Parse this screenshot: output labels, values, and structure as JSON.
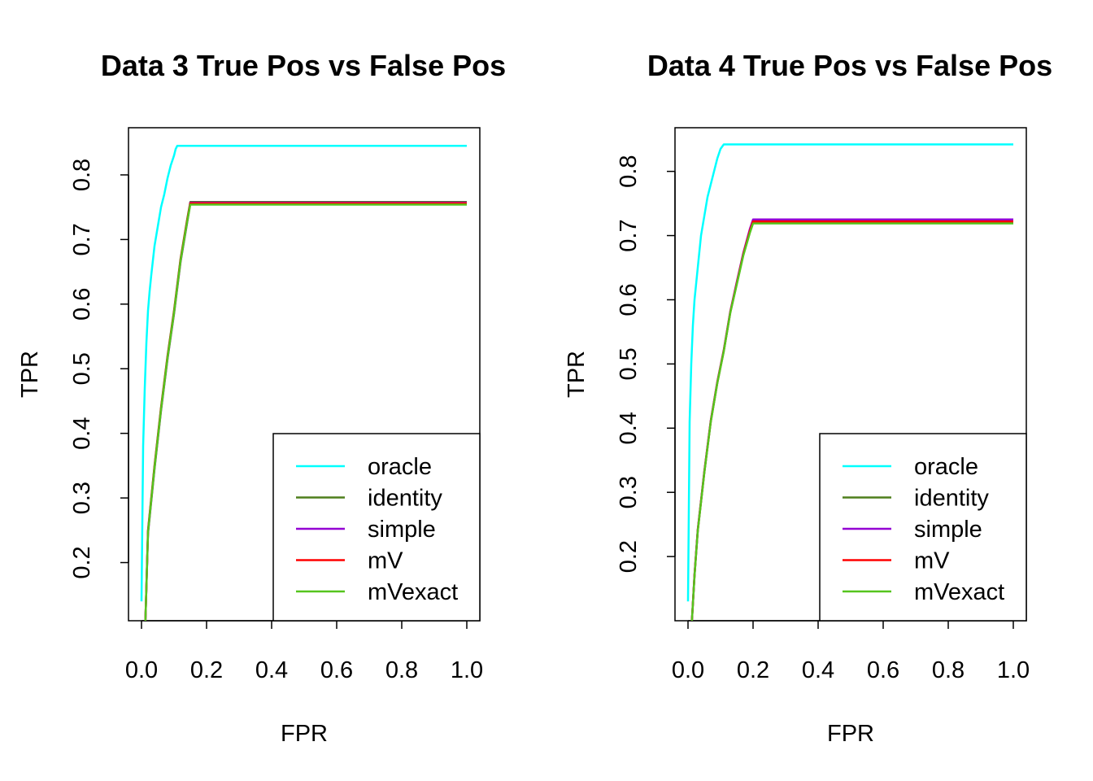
{
  "chart_data": [
    {
      "type": "line",
      "title": "Data 3 True Pos vs False Pos",
      "xlabel": "FPR",
      "ylabel": "TPR",
      "xlim": [
        -0.04,
        1.04
      ],
      "ylim": [
        0.11,
        0.873
      ],
      "xticks": [
        "0.0",
        "0.2",
        "0.4",
        "0.6",
        "0.8",
        "1.0"
      ],
      "yticks": [
        "0.2",
        "0.3",
        "0.4",
        "0.5",
        "0.6",
        "0.7",
        "0.8"
      ],
      "legend_position": "bottom-right",
      "series": [
        {
          "name": "oracle",
          "color": "#00ffff",
          "x": [
            0.0,
            0.005,
            0.01,
            0.015,
            0.02,
            0.025,
            0.03,
            0.04,
            0.05,
            0.06,
            0.07,
            0.08,
            0.09,
            0.1,
            0.105,
            0.11,
            0.2,
            0.4,
            0.6,
            0.8,
            1.0
          ],
          "y": [
            0.14,
            0.38,
            0.47,
            0.54,
            0.59,
            0.62,
            0.645,
            0.69,
            0.72,
            0.75,
            0.77,
            0.795,
            0.815,
            0.83,
            0.84,
            0.845,
            0.845,
            0.845,
            0.845,
            0.845,
            0.845
          ]
        },
        {
          "name": "identity",
          "color": "#4f7f1c",
          "x": [
            0.012,
            0.02,
            0.04,
            0.06,
            0.08,
            0.1,
            0.12,
            0.14,
            0.15,
            0.2,
            0.4,
            0.6,
            0.8,
            1.0
          ],
          "y": [
            0.11,
            0.25,
            0.35,
            0.44,
            0.52,
            0.59,
            0.67,
            0.73,
            0.758,
            0.758,
            0.758,
            0.758,
            0.758,
            0.758
          ]
        },
        {
          "name": "simple",
          "color": "#9400d3",
          "x": [
            0.012,
            0.02,
            0.04,
            0.06,
            0.08,
            0.1,
            0.12,
            0.14,
            0.15,
            0.2,
            0.4,
            0.6,
            0.8,
            1.0
          ],
          "y": [
            0.11,
            0.245,
            0.345,
            0.435,
            0.515,
            0.585,
            0.665,
            0.725,
            0.757,
            0.757,
            0.757,
            0.757,
            0.757,
            0.757
          ]
        },
        {
          "name": "mV",
          "color": "#ff0000",
          "x": [
            0.012,
            0.02,
            0.04,
            0.06,
            0.08,
            0.1,
            0.12,
            0.14,
            0.15,
            0.2,
            0.4,
            0.6,
            0.8,
            1.0
          ],
          "y": [
            0.11,
            0.248,
            0.348,
            0.438,
            0.518,
            0.588,
            0.668,
            0.728,
            0.756,
            0.756,
            0.756,
            0.756,
            0.756,
            0.756
          ]
        },
        {
          "name": "mVexact",
          "color": "#55c51e",
          "x": [
            0.012,
            0.02,
            0.04,
            0.06,
            0.08,
            0.1,
            0.12,
            0.14,
            0.15,
            0.2,
            0.4,
            0.6,
            0.8,
            1.0
          ],
          "y": [
            0.11,
            0.246,
            0.346,
            0.436,
            0.516,
            0.586,
            0.666,
            0.726,
            0.754,
            0.754,
            0.754,
            0.754,
            0.754,
            0.754
          ]
        }
      ]
    },
    {
      "type": "line",
      "title": "Data 4 True Pos vs False Pos",
      "xlabel": "FPR",
      "ylabel": "TPR",
      "xlim": [
        -0.04,
        1.04
      ],
      "ylim": [
        0.1,
        0.868
      ],
      "xticks": [
        "0.0",
        "0.2",
        "0.4",
        "0.6",
        "0.8",
        "1.0"
      ],
      "yticks": [
        "0.2",
        "0.3",
        "0.4",
        "0.5",
        "0.6",
        "0.7",
        "0.8"
      ],
      "legend_position": "bottom-right",
      "series": [
        {
          "name": "oracle",
          "color": "#00ffff",
          "x": [
            0.0,
            0.005,
            0.01,
            0.015,
            0.02,
            0.03,
            0.04,
            0.05,
            0.06,
            0.07,
            0.08,
            0.09,
            0.1,
            0.11,
            0.2,
            0.4,
            0.6,
            0.8,
            1.0
          ],
          "y": [
            0.13,
            0.41,
            0.5,
            0.56,
            0.6,
            0.65,
            0.7,
            0.73,
            0.76,
            0.78,
            0.8,
            0.82,
            0.835,
            0.842,
            0.842,
            0.842,
            0.842,
            0.842,
            0.842
          ]
        },
        {
          "name": "identity",
          "color": "#4f7f1c",
          "x": [
            0.012,
            0.02,
            0.03,
            0.05,
            0.07,
            0.09,
            0.11,
            0.13,
            0.15,
            0.17,
            0.19,
            0.2,
            0.4,
            0.6,
            0.8,
            1.0
          ],
          "y": [
            0.1,
            0.17,
            0.24,
            0.33,
            0.41,
            0.47,
            0.52,
            0.58,
            0.625,
            0.67,
            0.705,
            0.72,
            0.72,
            0.72,
            0.72,
            0.72
          ]
        },
        {
          "name": "simple",
          "color": "#9400d3",
          "x": [
            0.012,
            0.02,
            0.03,
            0.05,
            0.07,
            0.09,
            0.11,
            0.13,
            0.15,
            0.17,
            0.19,
            0.2,
            0.4,
            0.6,
            0.8,
            1.0
          ],
          "y": [
            0.1,
            0.172,
            0.242,
            0.332,
            0.412,
            0.472,
            0.522,
            0.582,
            0.628,
            0.673,
            0.71,
            0.725,
            0.725,
            0.725,
            0.725,
            0.725
          ]
        },
        {
          "name": "mV",
          "color": "#ff0000",
          "x": [
            0.012,
            0.02,
            0.03,
            0.05,
            0.07,
            0.09,
            0.11,
            0.13,
            0.15,
            0.17,
            0.19,
            0.2,
            0.4,
            0.6,
            0.8,
            1.0
          ],
          "y": [
            0.1,
            0.171,
            0.241,
            0.331,
            0.411,
            0.471,
            0.521,
            0.581,
            0.626,
            0.671,
            0.707,
            0.722,
            0.722,
            0.722,
            0.722,
            0.722
          ]
        },
        {
          "name": "mVexact",
          "color": "#55c51e",
          "x": [
            0.012,
            0.02,
            0.03,
            0.05,
            0.07,
            0.09,
            0.11,
            0.13,
            0.15,
            0.17,
            0.19,
            0.2,
            0.4,
            0.6,
            0.8,
            1.0
          ],
          "y": [
            0.1,
            0.17,
            0.24,
            0.33,
            0.41,
            0.47,
            0.52,
            0.58,
            0.624,
            0.669,
            0.704,
            0.719,
            0.719,
            0.719,
            0.719,
            0.719
          ]
        }
      ]
    }
  ]
}
